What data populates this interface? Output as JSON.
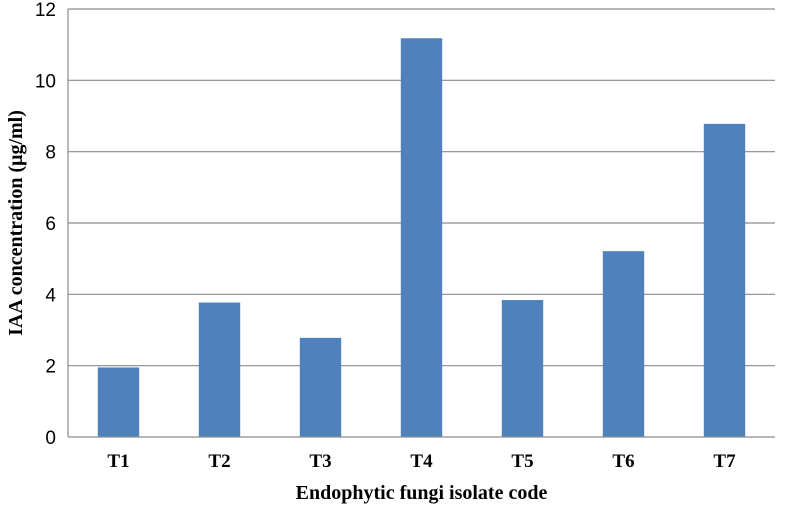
{
  "chart_data": {
    "type": "bar",
    "categories": [
      "T1",
      "T2",
      "T3",
      "T4",
      "T5",
      "T6",
      "T7"
    ],
    "values": [
      1.95,
      3.77,
      2.78,
      11.18,
      3.84,
      5.21,
      8.78
    ],
    "xlabel": "Endophytic fungi isolate code",
    "ylabel": "IAA concentration  (μg/ml)",
    "ylim": [
      0,
      12
    ],
    "yticks": [
      "0",
      "2",
      "4",
      "6",
      "8",
      "10",
      "12"
    ],
    "grid": true,
    "legend": "none",
    "bar_color": "#4f81bd"
  }
}
